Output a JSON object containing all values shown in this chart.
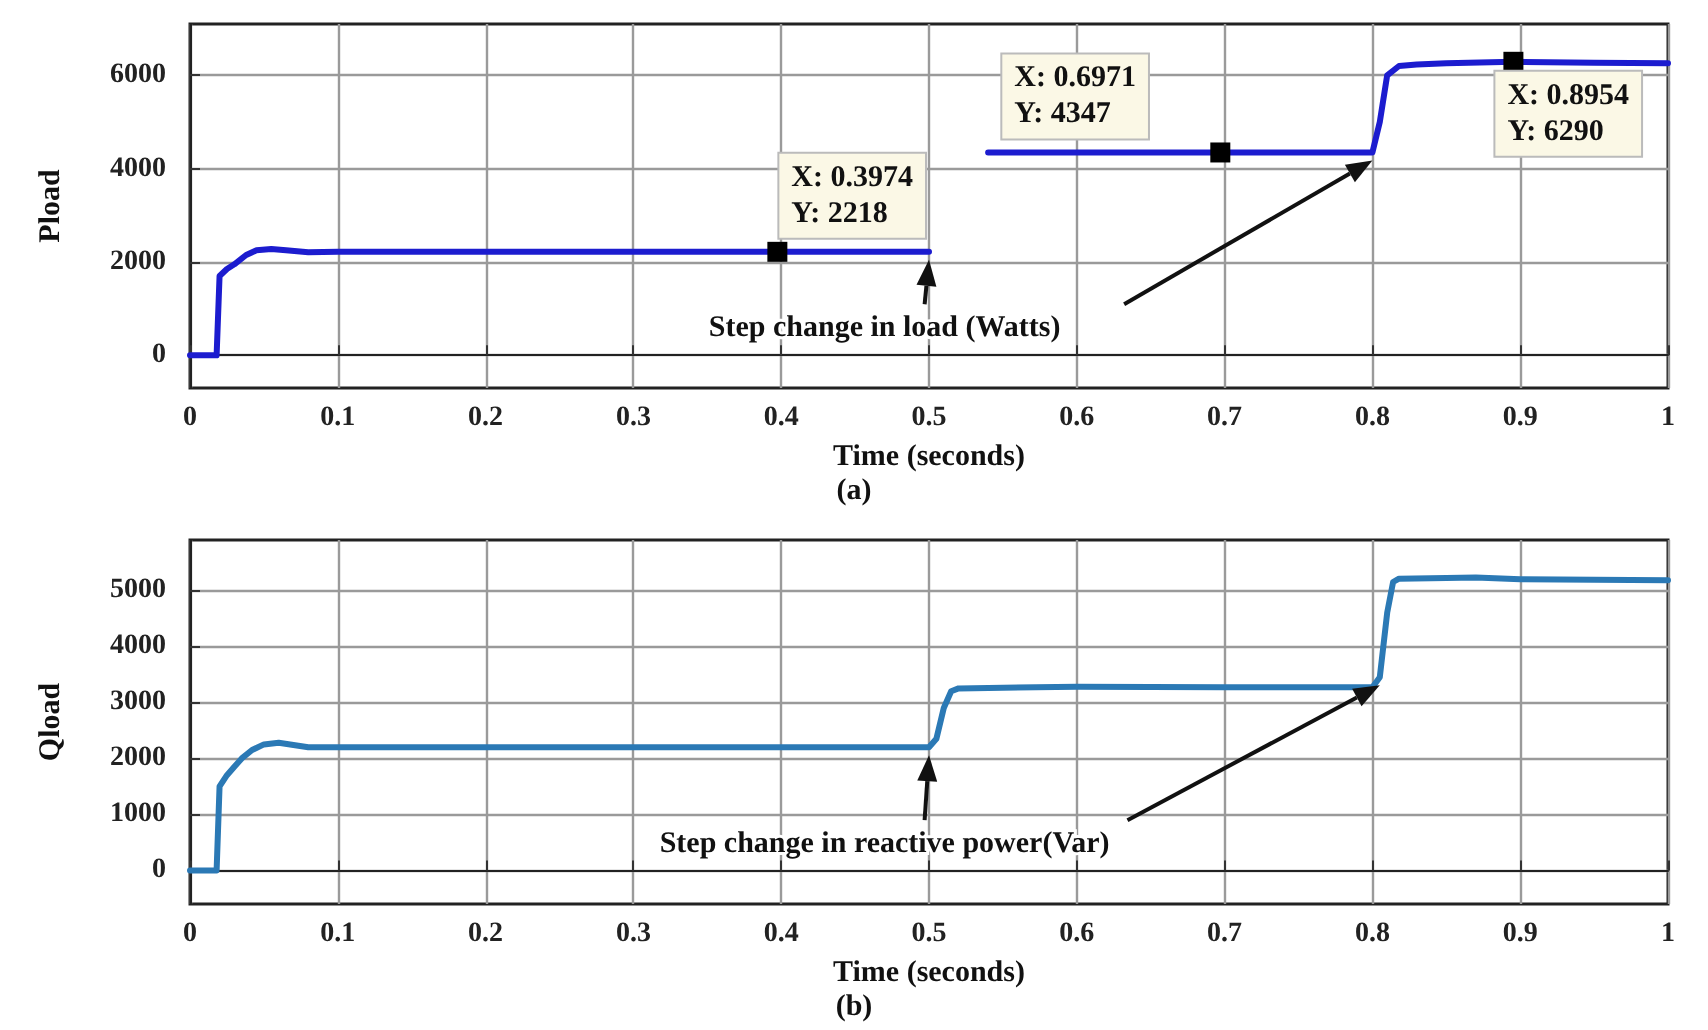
{
  "chart_data": [
    {
      "type": "line",
      "title": "(a)",
      "xlabel": "Time (seconds)",
      "ylabel": "Pload",
      "xlim": [
        0,
        1
      ],
      "xticks": [
        0,
        0.1,
        0.2,
        0.3,
        0.4,
        0.5,
        0.6,
        0.7,
        0.8,
        0.9,
        1
      ],
      "ylim": [
        -700,
        7100
      ],
      "yticks": [
        0,
        2000,
        4000,
        6000
      ],
      "grid": true,
      "marker": "none",
      "line_style": "solid",
      "series": [
        {
          "color": "#1c1ccf",
          "x": [
            0,
            0.018,
            0.02,
            0.025,
            0.03,
            0.038,
            0.045,
            0.055,
            0.065,
            0.08,
            0.1,
            0.2,
            0.3,
            0.3974,
            0.5,
            0.52,
            0.54,
            0.6,
            0.6971,
            0.8,
            0.805,
            0.81,
            0.818,
            0.83,
            0.85,
            0.8954,
            0.95,
            1
          ],
          "values": [
            0,
            0,
            1700,
            1850,
            1950,
            2150,
            2250,
            2280,
            2250,
            2210,
            2218,
            2218,
            2218,
            2218,
            2218,
            null,
            4347,
            4347,
            4347,
            4347,
            5000,
            6000,
            6200,
            6230,
            6260,
            6290,
            6270,
            6260
          ]
        }
      ],
      "annotations": [
        {
          "text": "X: 0.3974\nY: 2218",
          "x": 0.3974,
          "y": 2218
        },
        {
          "text": "X: 0.6971\nY: 4347",
          "x": 0.6971,
          "y": 4347
        },
        {
          "text": "X: 0.8954\nY: 6290",
          "x": 0.8954,
          "y": 6290
        },
        {
          "text": "Step change in load (Watts)",
          "x": 0.5,
          "y": 2218
        }
      ]
    },
    {
      "type": "line",
      "title": "(b)",
      "xlabel": "Time (seconds)",
      "ylabel": "Qload",
      "xlim": [
        0,
        1
      ],
      "xticks": [
        0,
        0.1,
        0.2,
        0.3,
        0.4,
        0.5,
        0.6,
        0.7,
        0.8,
        0.9,
        1
      ],
      "ylim": [
        -600,
        5900
      ],
      "yticks": [
        0,
        1000,
        2000,
        3000,
        4000,
        5000
      ],
      "grid": true,
      "marker": "none",
      "line_style": "solid",
      "series": [
        {
          "color": "#2b79b5",
          "x": [
            0,
            0.018,
            0.02,
            0.025,
            0.03,
            0.035,
            0.042,
            0.05,
            0.06,
            0.07,
            0.08,
            0.1,
            0.2,
            0.3,
            0.4,
            0.5,
            0.505,
            0.51,
            0.515,
            0.52,
            0.6,
            0.7,
            0.8,
            0.805,
            0.81,
            0.814,
            0.818,
            0.85,
            0.87,
            0.9,
            0.95,
            1
          ],
          "values": [
            0,
            0,
            1500,
            1700,
            1850,
            2000,
            2150,
            2250,
            2280,
            2240,
            2200,
            2200,
            2200,
            2200,
            2200,
            2200,
            2350,
            2900,
            3200,
            3250,
            3280,
            3270,
            3270,
            3450,
            4600,
            5150,
            5210,
            5220,
            5230,
            5200,
            5190,
            5180
          ]
        }
      ],
      "annotations": [
        {
          "text": "Step change in reactive power(Var)",
          "x": 0.5,
          "y": 2200
        }
      ]
    }
  ]
}
